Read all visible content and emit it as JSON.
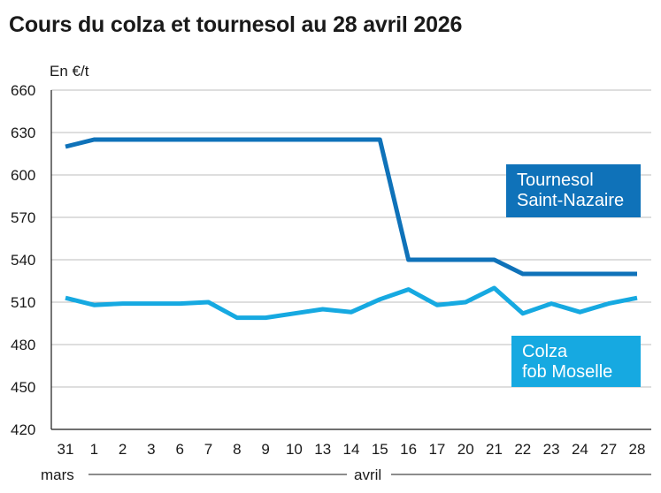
{
  "title": "Cours du colza et tournesol au 28 avril 2026",
  "chart_data": {
    "type": "line",
    "title": "Cours du colza et tournesol au 28 avril 2026",
    "ylabel": "En €/t",
    "xlabel": "",
    "ylim": [
      420,
      660
    ],
    "yticks": [
      420,
      450,
      480,
      510,
      540,
      570,
      600,
      630,
      660
    ],
    "categories": [
      "31",
      "1",
      "2",
      "3",
      "6",
      "7",
      "8",
      "9",
      "10",
      "13",
      "14",
      "15",
      "16",
      "17",
      "20",
      "21",
      "22",
      "23",
      "24",
      "27",
      "28"
    ],
    "months": [
      {
        "label": "mars",
        "start_index": 0
      },
      {
        "label": "avril",
        "start_index": 1
      }
    ],
    "grid": true,
    "legend": "inline",
    "series": [
      {
        "name_lines": [
          "Tournesol",
          "Saint-Nazaire"
        ],
        "color": "#0f72b9",
        "values": [
          620,
          625,
          625,
          625,
          625,
          625,
          625,
          625,
          625,
          625,
          625,
          625,
          540,
          540,
          540,
          540,
          530,
          530,
          530,
          530,
          530
        ]
      },
      {
        "name_lines": [
          "Colza",
          "fob Moselle"
        ],
        "color": "#16a9e1",
        "values": [
          513,
          508,
          509,
          509,
          509,
          510,
          499,
          499,
          502,
          505,
          503,
          512,
          519,
          508,
          510,
          520,
          502,
          509,
          503,
          509,
          513
        ]
      }
    ]
  }
}
